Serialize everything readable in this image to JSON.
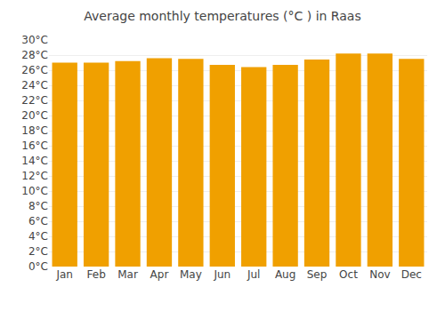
{
  "chart_data": {
    "type": "bar",
    "title": "Average monthly temperatures (°C ) in Raas",
    "categories": [
      "Jan",
      "Feb",
      "Mar",
      "Apr",
      "May",
      "Jun",
      "Jul",
      "Aug",
      "Sep",
      "Oct",
      "Nov",
      "Dec"
    ],
    "values": [
      27.0,
      27.0,
      27.2,
      27.6,
      27.5,
      26.7,
      26.4,
      26.7,
      27.4,
      28.2,
      28.2,
      27.5
    ],
    "color": "#F0A000",
    "ylim": [
      0,
      30
    ],
    "yticks": [
      {
        "value": 0,
        "label": "0°C"
      },
      {
        "value": 2,
        "label": "2°C"
      },
      {
        "value": 4,
        "label": "4°C"
      },
      {
        "value": 6,
        "label": "6°C"
      },
      {
        "value": 8,
        "label": "8°C"
      },
      {
        "value": 10,
        "label": "10°C"
      },
      {
        "value": 12,
        "label": "12°C"
      },
      {
        "value": 14,
        "label": "14°C"
      },
      {
        "value": 16,
        "label": "16°C"
      },
      {
        "value": 18,
        "label": "18°C"
      },
      {
        "value": 20,
        "label": "20°C"
      },
      {
        "value": 22,
        "label": "22°C"
      },
      {
        "value": 24,
        "label": "24°C"
      },
      {
        "value": 26,
        "label": "26°C"
      },
      {
        "value": 28,
        "label": "28°C"
      },
      {
        "value": 30,
        "label": "30°C"
      }
    ],
    "grid": true
  }
}
